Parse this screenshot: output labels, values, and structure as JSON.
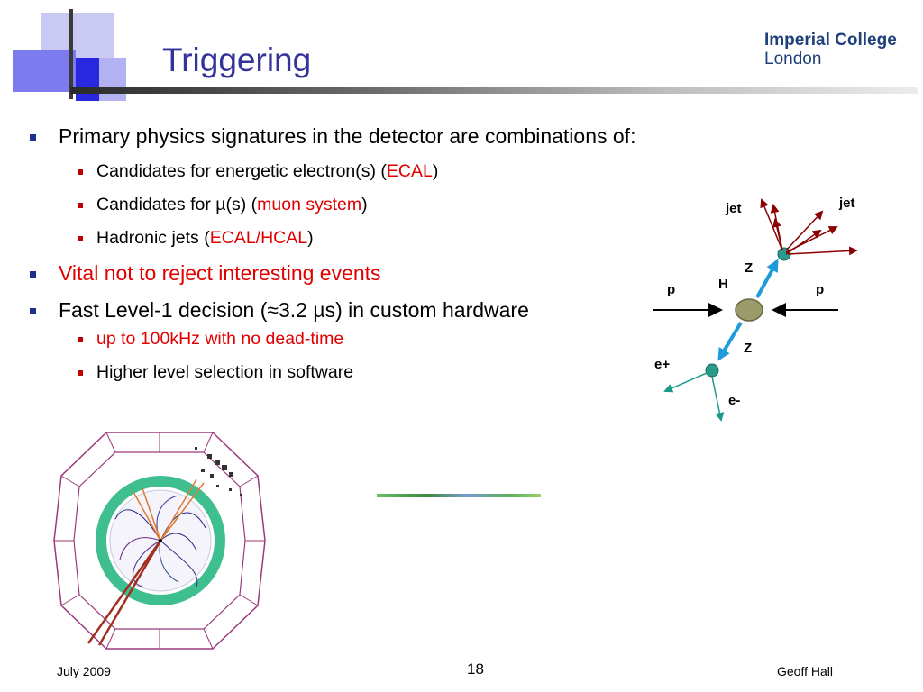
{
  "slide": {
    "title": "Triggering",
    "logo": {
      "line1": "Imperial College",
      "line2": "London"
    },
    "bullets": [
      {
        "text": "Primary physics signatures in the detector are combinations of:",
        "sub": [
          {
            "text": "Candidates for energetic electron(s) (",
            "highlight": "ECAL",
            "tail": ")"
          },
          {
            "text": "Candidates for µ(s) (",
            "highlight": "muon system",
            "tail": ")"
          },
          {
            "text": "Hadronic jets (",
            "highlight": "ECAL/HCAL",
            "tail": ")"
          }
        ]
      },
      {
        "text": "Vital not to reject interesting events"
      },
      {
        "text": "Fast Level-1 decision (≈3.2 µs) in custom hardware",
        "sub": [
          {
            "text": "up to 100kHz with no dead-time"
          },
          {
            "text": "Higher level selection in software"
          }
        ]
      }
    ],
    "diagram_labels": {
      "jet_left": "jet",
      "jet_right": "jet",
      "z_top": "Z",
      "h": "H",
      "p_left": "p",
      "p_right": "p",
      "z_bottom": "Z",
      "e_plus": "e+",
      "e_minus": "e-"
    },
    "footer": {
      "date": "July 2009",
      "page": "18",
      "author": "Geoff Hall"
    }
  },
  "colors": {
    "title": "#33339a",
    "highlight": "#e00000",
    "logo": "#1d3f7a",
    "arrow_dark_red": "#8b0000",
    "arrow_teal": "#1a9a8a",
    "arrow_blue": "#1e9bd8",
    "vertex_teal": "#2a9a8a",
    "higgs": "#9a9a6a",
    "detector_ring": "#9b3a7a",
    "ecal_ring": "#3fbf90"
  }
}
